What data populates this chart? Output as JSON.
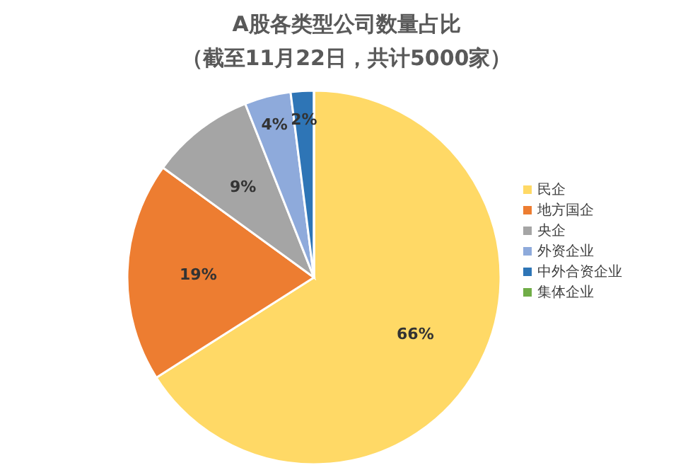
{
  "chart_data": {
    "type": "pie",
    "title": "A股各类型公司数量占比",
    "subtitle": "（截至11月22日，共计5000家）",
    "categories": [
      "民企",
      "地方国企",
      "央企",
      "外资企业",
      "中外合资企业",
      "集体企业"
    ],
    "values": [
      66,
      19,
      9,
      4,
      2,
      0
    ],
    "colors": [
      "#ffd966",
      "#ed7d31",
      "#a5a5a5",
      "#8eaadb",
      "#2e75b6",
      "#70ad47"
    ],
    "value_labels": [
      "66%",
      "19%",
      "9%",
      "4%",
      "2%",
      null
    ],
    "legend": "right"
  }
}
